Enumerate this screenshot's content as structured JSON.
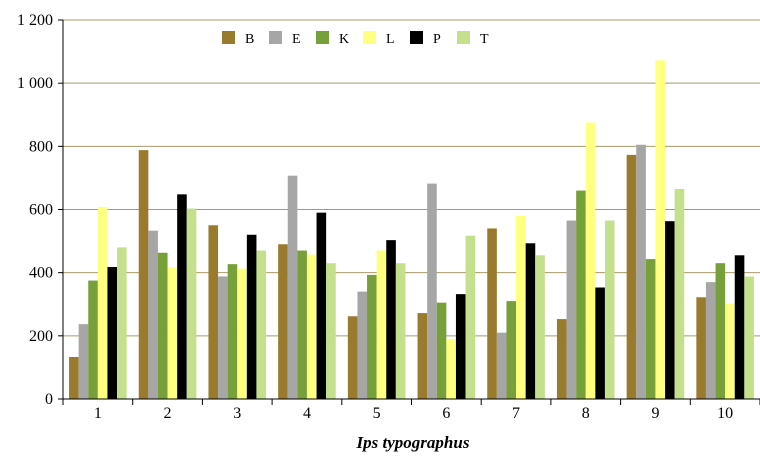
{
  "chart_data": {
    "type": "bar",
    "title": "",
    "xlabel": "Ips typographus",
    "ylabel": "",
    "categories": [
      "1",
      "2",
      "3",
      "4",
      "5",
      "6",
      "7",
      "8",
      "9",
      "10"
    ],
    "ylim": [
      0,
      1200
    ],
    "yticks": [
      0,
      200,
      400,
      600,
      800,
      1000,
      1200
    ],
    "ytick_labels": [
      "0",
      "200",
      "400",
      "600",
      "800",
      "1 000",
      "1 200"
    ],
    "grid": "horizontal",
    "legend_placement": "top-left",
    "series": [
      {
        "name": "B",
        "color": "#9a7b2e",
        "values": [
          133,
          788,
          550,
          490,
          262,
          272,
          540,
          253,
          773,
          322
        ]
      },
      {
        "name": "E",
        "color": "#a6a6a6",
        "values": [
          237,
          533,
          388,
          707,
          340,
          682,
          210,
          565,
          805,
          370
        ]
      },
      {
        "name": "K",
        "color": "#77a03a",
        "values": [
          375,
          463,
          427,
          470,
          393,
          305,
          310,
          660,
          443,
          430
        ]
      },
      {
        "name": "L",
        "color": "#ffff80",
        "values": [
          608,
          417,
          413,
          457,
          470,
          190,
          580,
          875,
          1072,
          302
        ]
      },
      {
        "name": "P",
        "color": "#000000",
        "values": [
          418,
          648,
          520,
          590,
          503,
          332,
          493,
          353,
          563,
          455
        ]
      },
      {
        "name": "T",
        "color": "#c5e08c",
        "values": [
          480,
          603,
          470,
          430,
          430,
          517,
          455,
          565,
          665,
          388
        ]
      }
    ]
  }
}
